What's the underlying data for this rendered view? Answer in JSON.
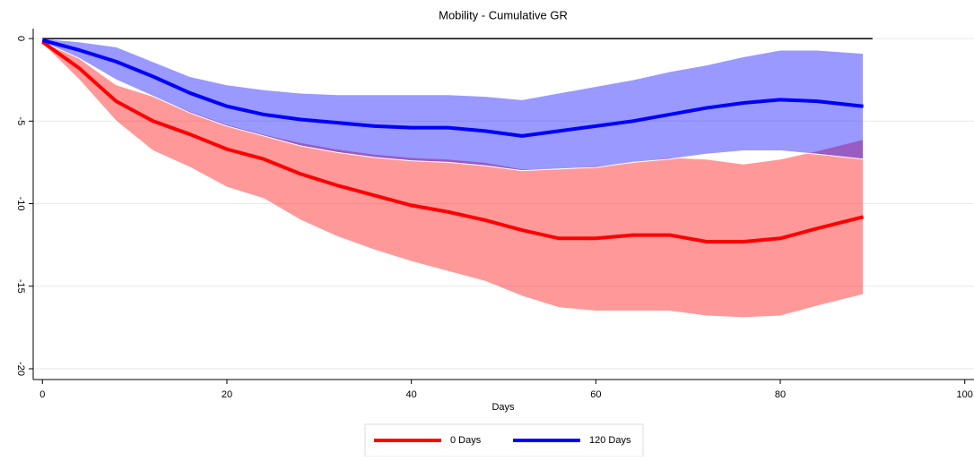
{
  "chart_data": {
    "type": "line",
    "title": "Mobility - Cumulative GR",
    "x_label": "Days",
    "x": [
      0,
      4,
      8,
      12,
      16,
      20,
      24,
      28,
      32,
      36,
      40,
      44,
      48,
      52,
      56,
      60,
      64,
      68,
      72,
      76,
      80,
      84,
      89
    ],
    "series": [
      {
        "name": "0 Days",
        "color": "#ff0000",
        "values": [
          -0.2,
          -1.8,
          -3.8,
          -5.0,
          -5.8,
          -6.7,
          -7.3,
          -8.2,
          -8.9,
          -9.5,
          -10.1,
          -10.5,
          -11.0,
          -11.6,
          -12.1,
          -12.1,
          -11.9,
          -11.9,
          -12.3,
          -12.3,
          -12.1,
          -11.5,
          -10.8
        ],
        "lower": [
          -0.3,
          -2.5,
          -5.0,
          -6.8,
          -7.8,
          -9.0,
          -9.7,
          -11.0,
          -12.0,
          -12.8,
          -13.5,
          -14.1,
          -14.7,
          -15.6,
          -16.3,
          -16.5,
          -16.5,
          -16.5,
          -16.8,
          -16.9,
          -16.8,
          -16.2,
          -15.5
        ],
        "upper": [
          -0.1,
          -1.2,
          -2.8,
          -3.5,
          -4.4,
          -5.2,
          -5.8,
          -6.3,
          -6.7,
          -7.0,
          -7.2,
          -7.3,
          -7.5,
          -7.9,
          -7.9,
          -7.7,
          -7.5,
          -7.2,
          -7.3,
          -7.6,
          -7.3,
          -6.8,
          -6.1
        ]
      },
      {
        "name": "120 Days",
        "color": "#0000ff",
        "values": [
          -0.1,
          -0.7,
          -1.4,
          -2.3,
          -3.3,
          -4.1,
          -4.6,
          -4.9,
          -5.1,
          -5.3,
          -5.4,
          -5.4,
          -5.6,
          -5.9,
          -5.6,
          -5.3,
          -5.0,
          -4.6,
          -4.2,
          -3.9,
          -3.7,
          -3.8,
          -4.1
        ],
        "lower": [
          -0.2,
          -1.2,
          -2.5,
          -3.5,
          -4.5,
          -5.3,
          -5.9,
          -6.5,
          -6.9,
          -7.2,
          -7.4,
          -7.5,
          -7.7,
          -8.0,
          -7.9,
          -7.8,
          -7.5,
          -7.3,
          -7.0,
          -6.8,
          -6.8,
          -7.0,
          -7.3
        ],
        "upper": [
          0,
          -0.2,
          -0.5,
          -1.4,
          -2.3,
          -2.8,
          -3.1,
          -3.3,
          -3.4,
          -3.4,
          -3.4,
          -3.4,
          -3.5,
          -3.7,
          -3.3,
          -2.9,
          -2.5,
          -2.0,
          -1.6,
          -1.1,
          -0.7,
          -0.7,
          -0.9
        ]
      }
    ],
    "band_opacity": 0.4,
    "reference_line": {
      "y": 0,
      "x": [
        0,
        90
      ]
    },
    "xlim": [
      -1,
      101
    ],
    "ylim": [
      -20.65,
      0.6
    ],
    "xticks": [
      0,
      20,
      40,
      60,
      80,
      100
    ],
    "yticks": [
      0,
      -5,
      -10,
      -15,
      -20
    ],
    "grid": true,
    "legend": "bottom"
  }
}
